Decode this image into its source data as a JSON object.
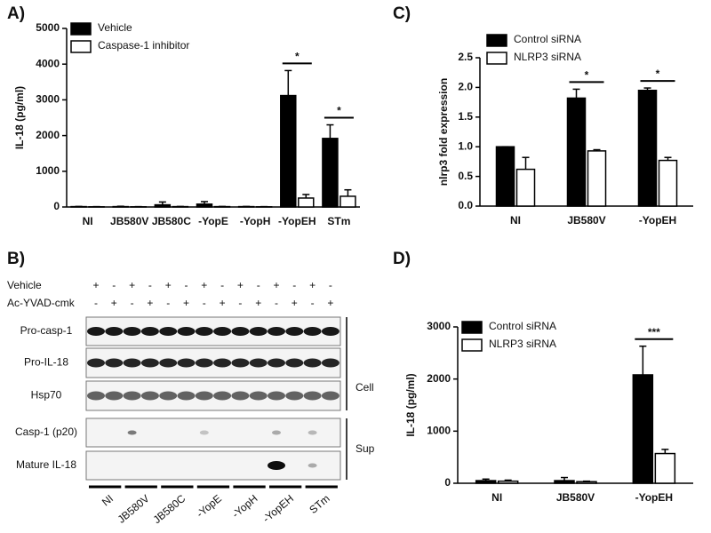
{
  "chart_data": [
    {
      "type": "bar",
      "panel_label": "A)",
      "y_label": "IL-18 (pg/ml)",
      "legend": "upper left",
      "categories": [
        "NI",
        "JB580V",
        "JB580C",
        "-YopE",
        "-YopH",
        "-YopEH",
        "STm"
      ],
      "series": [
        {
          "name": "Vehicle",
          "color": "#000000",
          "values": [
            10,
            10,
            60,
            80,
            10,
            3120,
            1920
          ],
          "errors": [
            5,
            10,
            80,
            70,
            5,
            700,
            380
          ]
        },
        {
          "name": "Caspase-1 inhibitor",
          "color": "#ffffff",
          "values": [
            5,
            5,
            10,
            10,
            5,
            250,
            300
          ],
          "errors": [
            5,
            5,
            5,
            5,
            5,
            100,
            180
          ]
        }
      ],
      "ylim": [
        0,
        5000
      ],
      "yticks": [
        0,
        1000,
        2000,
        3000,
        4000,
        5000
      ],
      "significance": [
        {
          "category": "-YopEH",
          "label": "*"
        },
        {
          "category": "STm",
          "label": "*"
        }
      ]
    },
    {
      "type": "bar",
      "panel_label": "C)",
      "y_label": "nlrp3 fold expression",
      "legend": "above",
      "categories": [
        "NI",
        "JB580V",
        "-YopEH"
      ],
      "series": [
        {
          "name": "Control siRNA",
          "color": "#000000",
          "values": [
            1.0,
            1.82,
            1.95
          ],
          "errors": [
            0,
            0.15,
            0.04
          ]
        },
        {
          "name": "NLRP3 siRNA",
          "color": "#ffffff",
          "values": [
            0.62,
            0.93,
            0.77
          ],
          "errors": [
            0.2,
            0.02,
            0.05
          ]
        }
      ],
      "ylim": [
        0,
        2.5
      ],
      "yticks": [
        {
          "value": 0,
          "label": "0.0"
        },
        0.5,
        {
          "value": 1,
          "label": "1.0"
        },
        1.5,
        {
          "value": 2,
          "label": "2.0"
        },
        2.5
      ],
      "significance": [
        {
          "category": "JB580V",
          "label": "*"
        },
        {
          "category": "-YopEH",
          "label": "*"
        }
      ]
    },
    {
      "type": "bar",
      "panel_label": "D)",
      "y_label": "IL-18 (pg/ml)",
      "legend": "upper left",
      "categories": [
        "NI",
        "JB580V",
        "-YopEH"
      ],
      "series": [
        {
          "name": "Control siRNA",
          "color": "#000000",
          "values": [
            50,
            50,
            2080
          ],
          "errors": [
            30,
            60,
            550
          ]
        },
        {
          "name": "NLRP3 siRNA",
          "color": "#ffffff",
          "values": [
            40,
            30,
            570
          ],
          "errors": [
            20,
            10,
            80
          ]
        }
      ],
      "ylim": [
        0,
        3000
      ],
      "yticks": [
        0,
        1000,
        2000,
        3000
      ],
      "significance": [
        {
          "category": "-YopEH",
          "label": "***"
        }
      ]
    }
  ],
  "blot": {
    "panel_label": "B)",
    "treatments": [
      {
        "name": "Vehicle",
        "signs": [
          "+",
          "-",
          "+",
          "-",
          "+",
          "-",
          "+",
          "-",
          "+",
          "-",
          "+",
          "-",
          "+",
          "-"
        ]
      },
      {
        "name": "Ac-YVAD-cmk",
        "signs": [
          "-",
          "+",
          "-",
          "+",
          "-",
          "+",
          "-",
          "+",
          "-",
          "+",
          "-",
          "+",
          "-",
          "+"
        ]
      }
    ],
    "bands": [
      "Pro-casp-1",
      "Pro-IL-18",
      "Hsp70",
      "Casp-1 (p20)",
      "Mature IL-18"
    ],
    "fractions": [
      "Cell",
      "Sup"
    ],
    "lanes": [
      "NI",
      "JB580V",
      "JB580C",
      "-YopE",
      "-YopH",
      "-YopEH",
      "STm"
    ]
  }
}
